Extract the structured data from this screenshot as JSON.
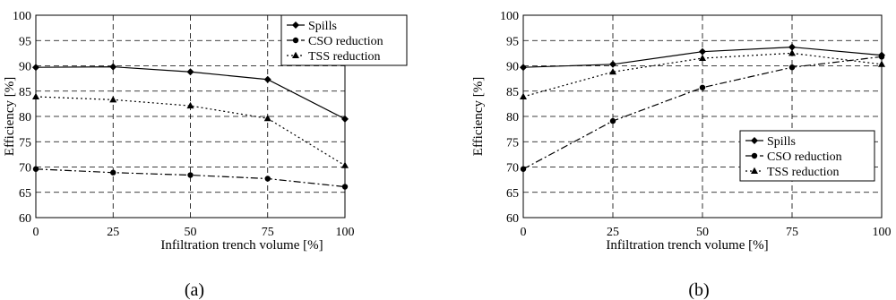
{
  "chart_data": [
    {
      "type": "line",
      "panel_label": "(a)",
      "xlabel": "Infiltration trench volume  [%]",
      "ylabel": "Efficiency [%]",
      "x": [
        0,
        25,
        50,
        75,
        100
      ],
      "xlim": [
        0,
        100
      ],
      "ylim": [
        60,
        100
      ],
      "xticks": [
        "0",
        "25",
        "50",
        "75",
        "100"
      ],
      "yticks": [
        "60",
        "65",
        "70",
        "75",
        "80",
        "85",
        "90",
        "95",
        "100"
      ],
      "grid": true,
      "legend_position": "top-right",
      "series": [
        {
          "name": "Spills",
          "marker": "diamond",
          "line_style": "solid",
          "values": [
            89.7,
            89.8,
            88.8,
            87.3,
            79.5
          ]
        },
        {
          "name": "CSO reduction",
          "marker": "circle",
          "line_style": "dash-dot",
          "values": [
            69.6,
            68.9,
            68.4,
            67.7,
            66.1
          ]
        },
        {
          "name": "TSS reduction",
          "marker": "triangle",
          "line_style": "dotted",
          "values": [
            83.9,
            83.3,
            82.1,
            79.6,
            70.3
          ]
        }
      ]
    },
    {
      "type": "line",
      "panel_label": "(b)",
      "xlabel": "Infiltration trench volume  [%]",
      "ylabel": "Efficiency [%]",
      "x": [
        0,
        25,
        50,
        75,
        100
      ],
      "xlim": [
        0,
        100
      ],
      "ylim": [
        60,
        100
      ],
      "xticks": [
        "0",
        "25",
        "50",
        "75",
        "100"
      ],
      "yticks": [
        "60",
        "65",
        "70",
        "75",
        "80",
        "85",
        "90",
        "95",
        "100"
      ],
      "grid": true,
      "legend_position": "center-right",
      "series": [
        {
          "name": "Spills",
          "marker": "diamond",
          "line_style": "solid",
          "values": [
            89.7,
            90.3,
            92.8,
            93.7,
            92.1
          ]
        },
        {
          "name": "CSO reduction",
          "marker": "circle",
          "line_style": "dash-dot",
          "values": [
            69.6,
            79.1,
            85.7,
            89.7,
            91.8
          ]
        },
        {
          "name": "TSS reduction",
          "marker": "triangle",
          "line_style": "dotted",
          "values": [
            83.9,
            88.8,
            91.5,
            92.5,
            90.3
          ]
        }
      ]
    }
  ]
}
